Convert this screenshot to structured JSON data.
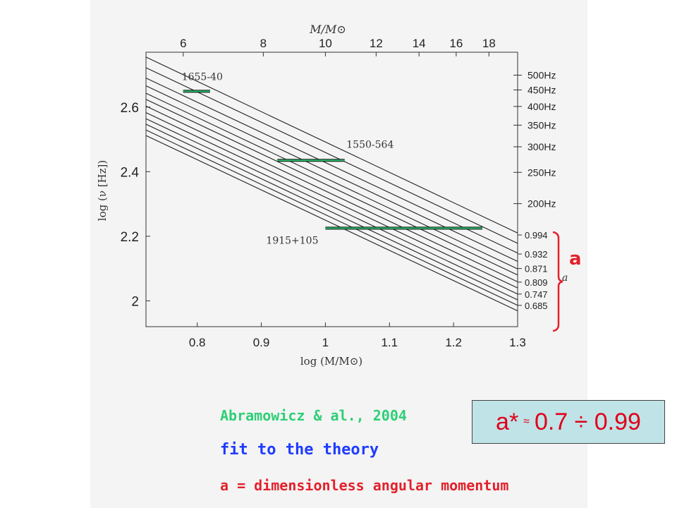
{
  "chart_data": {
    "type": "line",
    "xlabel": "log (M/M⊙)",
    "ylabel": "log (ν [Hz])",
    "top_axis_label": "M/M⊙",
    "xlim": [
      0.72,
      1.3
    ],
    "ylim": [
      1.92,
      2.77
    ],
    "x_ticks": [
      0.8,
      0.9,
      1,
      1.1,
      1.2,
      1.3
    ],
    "x_tick_labels": [
      "0.8",
      "0.9",
      "1",
      "1.1",
      "1.2",
      "1.3"
    ],
    "y_ticks": [
      2,
      2.2,
      2.4,
      2.6
    ],
    "y_tick_labels": [
      "2",
      "2.2",
      "2.4",
      "2.6"
    ],
    "top_ticks": [
      6,
      8,
      10,
      12,
      14,
      16,
      18
    ],
    "top_tick_labels": [
      "6",
      "8",
      "10",
      "12",
      "14",
      "16",
      "18"
    ],
    "right_freq_ticks": [
      {
        "label": "500Hz",
        "value": 500
      },
      {
        "label": "450Hz",
        "value": 450
      },
      {
        "label": "400Hz",
        "value": 400
      },
      {
        "label": "350Hz",
        "value": 350
      },
      {
        "label": "300Hz",
        "value": 300
      },
      {
        "label": "250Hz",
        "value": 250
      },
      {
        "label": "200Hz",
        "value": 200
      }
    ],
    "right_spin_labels": [
      {
        "label": "0.994",
        "y": 2.204
      },
      {
        "label": "0.932",
        "y": 2.145
      },
      {
        "label": "0.871",
        "y": 2.1
      },
      {
        "label": "0.809",
        "y": 2.058
      },
      {
        "label": "0.747",
        "y": 2.021
      },
      {
        "label": "0.685",
        "y": 1.986
      }
    ],
    "spin_axis_label": "a",
    "lines": [
      {
        "y_start": 2.755,
        "y_end": 2.21
      },
      {
        "y_start": 2.722,
        "y_end": 2.178
      },
      {
        "y_start": 2.69,
        "y_end": 2.148
      },
      {
        "y_start": 2.666,
        "y_end": 2.122
      },
      {
        "y_start": 2.643,
        "y_end": 2.099
      },
      {
        "y_start": 2.624,
        "y_end": 2.08
      },
      {
        "y_start": 2.603,
        "y_end": 2.059
      },
      {
        "y_start": 2.583,
        "y_end": 2.04
      },
      {
        "y_start": 2.564,
        "y_end": 2.021
      },
      {
        "y_start": 2.547,
        "y_end": 2.003
      },
      {
        "y_start": 2.529,
        "y_end": 1.986
      },
      {
        "y_start": 2.512,
        "y_end": 1.969
      }
    ],
    "observations": [
      {
        "name": "1655-40",
        "x_min": 0.778,
        "x_max": 0.82,
        "y": 2.649
      },
      {
        "name": "1550-564",
        "x_min": 0.925,
        "x_max": 1.03,
        "y": 2.435
      },
      {
        "name": "1915+105",
        "x_min": 1.0,
        "x_max": 1.245,
        "y": 2.225
      }
    ]
  },
  "annotations": {
    "spin_symbol": "a",
    "result_prefix": "a*",
    "result_approx": "≈",
    "result_range": "0.7 ÷ 0.99",
    "line1": "Abramowicz & al., 2004",
    "line2": "fit to the theory",
    "line3_symbol": "a",
    "line3_rest": " = dimensionless angular momentum"
  },
  "colors": {
    "observation": "#2bbf6e",
    "red": "#e3212b",
    "blue": "#1f3cff",
    "result_bg": "#bfe3e6"
  }
}
